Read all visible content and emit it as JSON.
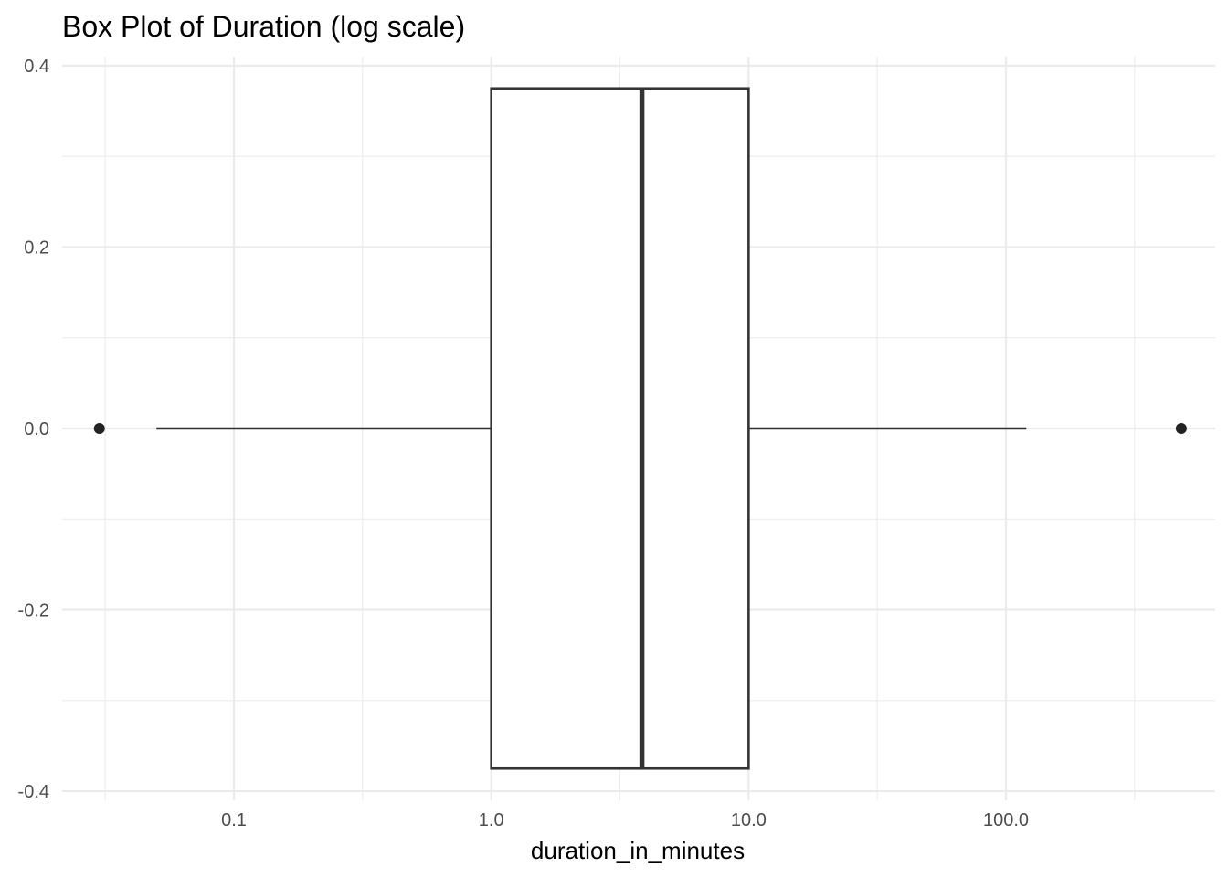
{
  "chart_data": {
    "type": "box",
    "title": "Box Plot of Duration (log scale)",
    "xlabel": "duration_in_minutes",
    "ylabel": "",
    "x_scale": "log10",
    "xlim": [
      0.0215,
      650
    ],
    "ylim": [
      -0.41,
      0.41
    ],
    "x_ticks": [
      {
        "value": 0.1,
        "label": "0.1"
      },
      {
        "value": 1,
        "label": "1.0"
      },
      {
        "value": 10,
        "label": "10.0"
      },
      {
        "value": 100,
        "label": "100.0"
      }
    ],
    "x_minor_breaks": [
      0.0316,
      0.316,
      3.16,
      31.6,
      316
    ],
    "y_ticks": [
      {
        "value": 0.4,
        "label": "0.4"
      },
      {
        "value": 0.2,
        "label": "0.2"
      },
      {
        "value": 0.0,
        "label": "0.0"
      },
      {
        "value": -0.2,
        "label": "-0.2"
      },
      {
        "value": -0.4,
        "label": "-0.4"
      }
    ],
    "y_minor_breaks": [
      0.3,
      0.1,
      -0.1,
      -0.3
    ],
    "grid": true,
    "box": {
      "y_center": 0.0,
      "y_half_width": 0.375,
      "whisker_low": 0.05,
      "q1": 1.0,
      "median": 3.85,
      "q3": 10.0,
      "whisker_high": 120,
      "outliers": [
        0.03,
        480
      ]
    },
    "colors": {
      "box_line": "#333333",
      "box_fill": "#ffffff",
      "point": "#222222"
    }
  }
}
